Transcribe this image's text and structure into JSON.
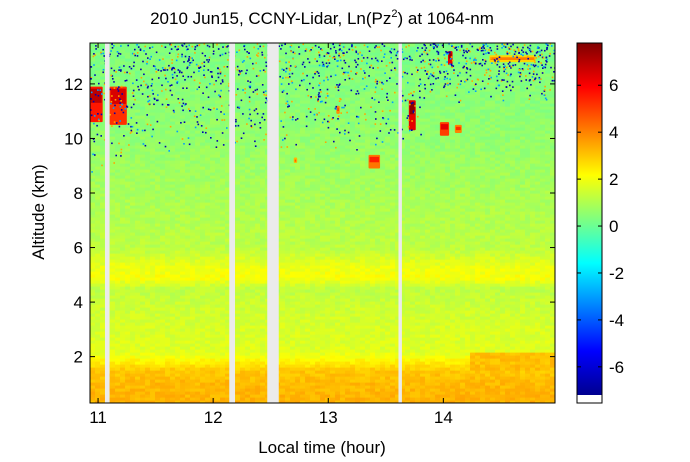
{
  "chart_data": {
    "type": "heatmap",
    "title": "2010 Jun15, CCNY-Lidar, Ln(Pz",
    "title_sup": "2",
    "title_tail": ") at 1064-nm",
    "xlabel": "Local time (hour)",
    "ylabel": "Altitude (km)",
    "xlim": [
      10.93,
      14.97
    ],
    "ylim": [
      0.3,
      13.5
    ],
    "x_ticks": [
      "11",
      "12",
      "13",
      "14"
    ],
    "x_tick_values": [
      11,
      12,
      13,
      14
    ],
    "y_ticks": [
      "2",
      "4",
      "6",
      "8",
      "10",
      "12"
    ],
    "y_tick_values": [
      2,
      4,
      6,
      8,
      10,
      12
    ],
    "colorbar": {
      "colormap": "jet",
      "range": [
        -7.2,
        7.8
      ],
      "ticks": [
        "-6",
        "-4",
        "-2",
        "0",
        "2",
        "4",
        "6"
      ],
      "tick_values": [
        -6,
        -4,
        -2,
        0,
        2,
        4,
        6
      ]
    },
    "data_gaps_hours": [
      [
        11.06,
        11.1
      ],
      [
        12.14,
        12.19
      ],
      [
        12.47,
        12.57
      ],
      [
        13.61,
        13.64
      ]
    ],
    "altitude_profile": [
      {
        "alt": 0.3,
        "value": 3.3
      },
      {
        "alt": 1.0,
        "value": 3.2
      },
      {
        "alt": 1.5,
        "value": 3.0
      },
      {
        "alt": 1.8,
        "value": 2.4
      },
      {
        "alt": 2.2,
        "value": 1.7
      },
      {
        "alt": 3.0,
        "value": 1.6
      },
      {
        "alt": 4.0,
        "value": 1.4
      },
      {
        "alt": 4.5,
        "value": 1.2
      },
      {
        "alt": 4.9,
        "value": 2.1
      },
      {
        "alt": 5.3,
        "value": 1.9
      },
      {
        "alt": 6.0,
        "value": 1.2
      },
      {
        "alt": 8.0,
        "value": 0.9
      },
      {
        "alt": 10.0,
        "value": 0.6
      },
      {
        "alt": 12.0,
        "value": 0.4
      },
      {
        "alt": 13.5,
        "value": 0.3
      }
    ],
    "cloud_features": [
      {
        "t0": 10.93,
        "t1": 11.04,
        "alt0": 10.6,
        "alt1": 11.9,
        "value": 5.6
      },
      {
        "t0": 11.1,
        "t1": 11.25,
        "alt0": 10.5,
        "alt1": 11.9,
        "value": 5.2
      },
      {
        "t0": 13.35,
        "t1": 13.45,
        "alt0": 8.9,
        "alt1": 9.4,
        "value": 4.2
      },
      {
        "t0": 13.7,
        "t1": 13.76,
        "alt0": 10.3,
        "alt1": 11.4,
        "value": 6.3
      },
      {
        "t0": 13.97,
        "t1": 14.05,
        "alt0": 10.1,
        "alt1": 10.6,
        "value": 5.0
      },
      {
        "t0": 14.04,
        "t1": 14.08,
        "alt0": 12.7,
        "alt1": 13.2,
        "value": 6.2
      },
      {
        "t0": 14.1,
        "t1": 14.16,
        "alt0": 10.2,
        "alt1": 10.5,
        "value": 4.0
      },
      {
        "t0": 14.4,
        "t1": 14.8,
        "alt0": 12.8,
        "alt1": 13.05,
        "value": 2.8
      },
      {
        "t0": 12.7,
        "t1": 12.73,
        "alt0": 9.1,
        "alt1": 9.3,
        "value": 3.2
      },
      {
        "t0": 13.07,
        "t1": 13.1,
        "alt0": 10.9,
        "alt1": 11.2,
        "value": 3.8
      }
    ]
  }
}
